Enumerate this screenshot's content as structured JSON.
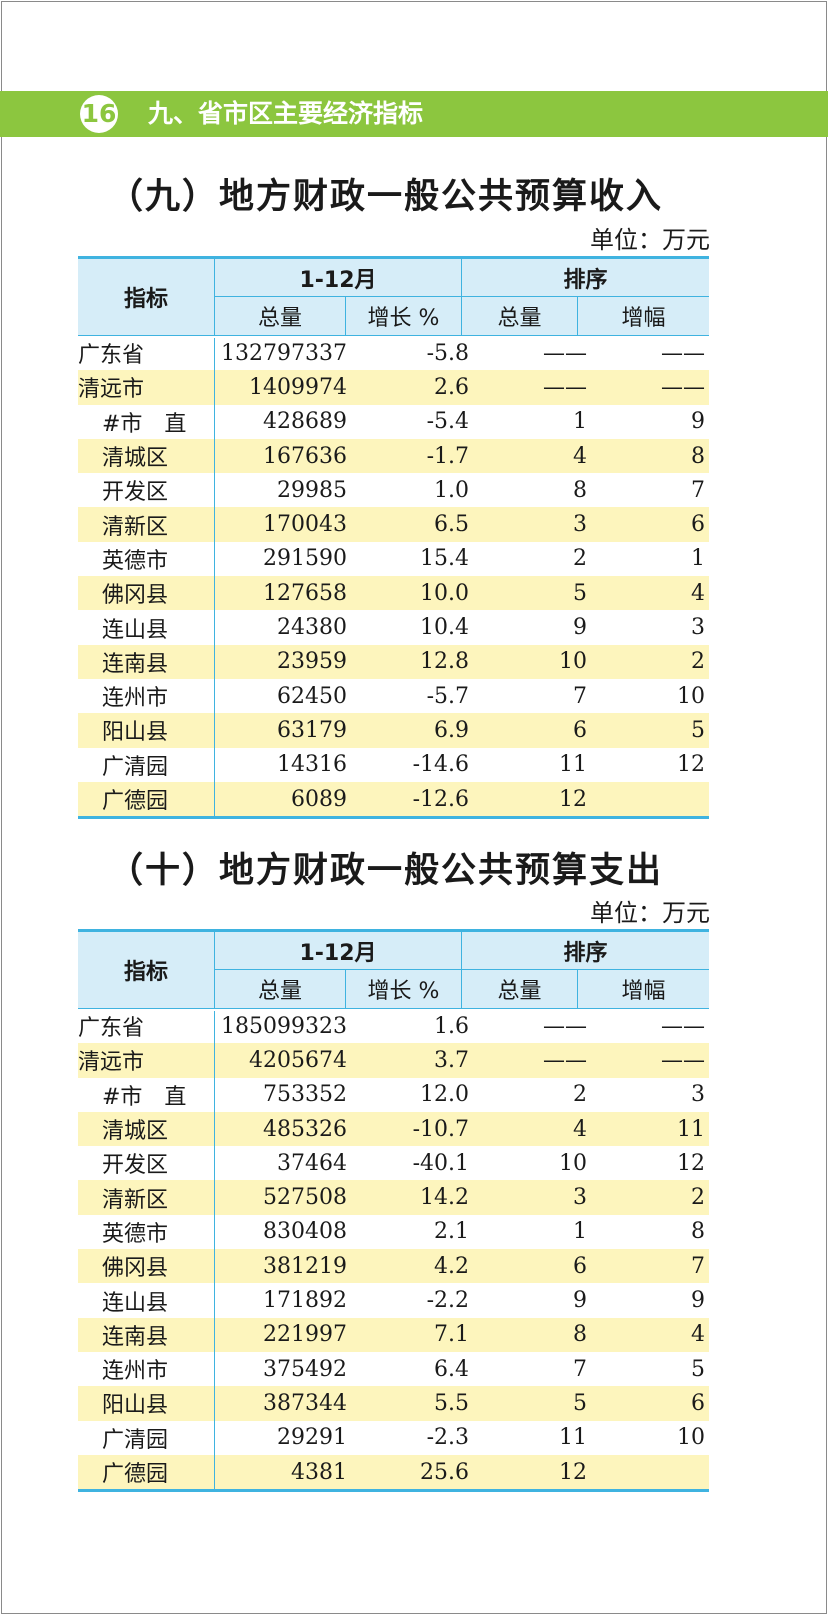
{
  "page": {
    "number": "16",
    "chapter": "九、省市区主要经济指标"
  },
  "tables": [
    {
      "title": "（九）地方财政一般公共预算收入",
      "unit": "单位：万元",
      "headers": {
        "indicator": "指标",
        "period": "1-12月",
        "rank": "排序",
        "total": "总量",
        "growth": "增长 %",
        "rank_total": "总量",
        "rank_growth": "增幅"
      },
      "rows": [
        {
          "name": "广东省",
          "total": "132797337",
          "growth": "-5.8",
          "rank_total": "——",
          "rank_growth": "——"
        },
        {
          "name": "清远市",
          "total": "1409974",
          "growth": "2.6",
          "rank_total": "——",
          "rank_growth": "——"
        },
        {
          "name": "#市　直",
          "total": "428689",
          "growth": "-5.4",
          "rank_total": "1",
          "rank_growth": "9"
        },
        {
          "name": "清城区",
          "total": "167636",
          "growth": "-1.7",
          "rank_total": "4",
          "rank_growth": "8"
        },
        {
          "name": "开发区",
          "total": "29985",
          "growth": "1.0",
          "rank_total": "8",
          "rank_growth": "7"
        },
        {
          "name": "清新区",
          "total": "170043",
          "growth": "6.5",
          "rank_total": "3",
          "rank_growth": "6"
        },
        {
          "name": "英德市",
          "total": "291590",
          "growth": "15.4",
          "rank_total": "2",
          "rank_growth": "1"
        },
        {
          "name": "佛冈县",
          "total": "127658",
          "growth": "10.0",
          "rank_total": "5",
          "rank_growth": "4"
        },
        {
          "name": "连山县",
          "total": "24380",
          "growth": "10.4",
          "rank_total": "9",
          "rank_growth": "3"
        },
        {
          "name": "连南县",
          "total": "23959",
          "growth": "12.8",
          "rank_total": "10",
          "rank_growth": "2"
        },
        {
          "name": "连州市",
          "total": "62450",
          "growth": "-5.7",
          "rank_total": "7",
          "rank_growth": "10"
        },
        {
          "name": "阳山县",
          "total": "63179",
          "growth": "6.9",
          "rank_total": "6",
          "rank_growth": "5"
        },
        {
          "name": "广清园",
          "total": "14316",
          "growth": "-14.6",
          "rank_total": "11",
          "rank_growth": "12"
        },
        {
          "name": "广德园",
          "total": "6089",
          "growth": "-12.6",
          "rank_total": "12",
          "rank_growth": ""
        }
      ]
    },
    {
      "title": "（十）地方财政一般公共预算支出",
      "unit": "单位：万元",
      "headers": {
        "indicator": "指标",
        "period": "1-12月",
        "rank": "排序",
        "total": "总量",
        "growth": "增长 %",
        "rank_total": "总量",
        "rank_growth": "增幅"
      },
      "rows": [
        {
          "name": "广东省",
          "total": "185099323",
          "growth": "1.6",
          "rank_total": "——",
          "rank_growth": "——"
        },
        {
          "name": "清远市",
          "total": "4205674",
          "growth": "3.7",
          "rank_total": "——",
          "rank_growth": "——"
        },
        {
          "name": "#市　直",
          "total": "753352",
          "growth": "12.0",
          "rank_total": "2",
          "rank_growth": "3"
        },
        {
          "name": "清城区",
          "total": "485326",
          "growth": "-10.7",
          "rank_total": "4",
          "rank_growth": "11"
        },
        {
          "name": "开发区",
          "total": "37464",
          "growth": "-40.1",
          "rank_total": "10",
          "rank_growth": "12"
        },
        {
          "name": "清新区",
          "total": "527508",
          "growth": "14.2",
          "rank_total": "3",
          "rank_growth": "2"
        },
        {
          "name": "英德市",
          "total": "830408",
          "growth": "2.1",
          "rank_total": "1",
          "rank_growth": "8"
        },
        {
          "name": "佛冈县",
          "total": "381219",
          "growth": "4.2",
          "rank_total": "6",
          "rank_growth": "7"
        },
        {
          "name": "连山县",
          "total": "171892",
          "growth": "-2.2",
          "rank_total": "9",
          "rank_growth": "9"
        },
        {
          "name": "连南县",
          "total": "221997",
          "growth": "7.1",
          "rank_total": "8",
          "rank_growth": "4"
        },
        {
          "name": "连州市",
          "total": "375492",
          "growth": "6.4",
          "rank_total": "7",
          "rank_growth": "5"
        },
        {
          "name": "阳山县",
          "total": "387344",
          "growth": "5.5",
          "rank_total": "5",
          "rank_growth": "6"
        },
        {
          "name": "广清园",
          "total": "29291",
          "growth": "-2.3",
          "rank_total": "11",
          "rank_growth": "10"
        },
        {
          "name": "广德园",
          "total": "4381",
          "growth": "25.6",
          "rank_total": "12",
          "rank_growth": ""
        }
      ]
    }
  ]
}
